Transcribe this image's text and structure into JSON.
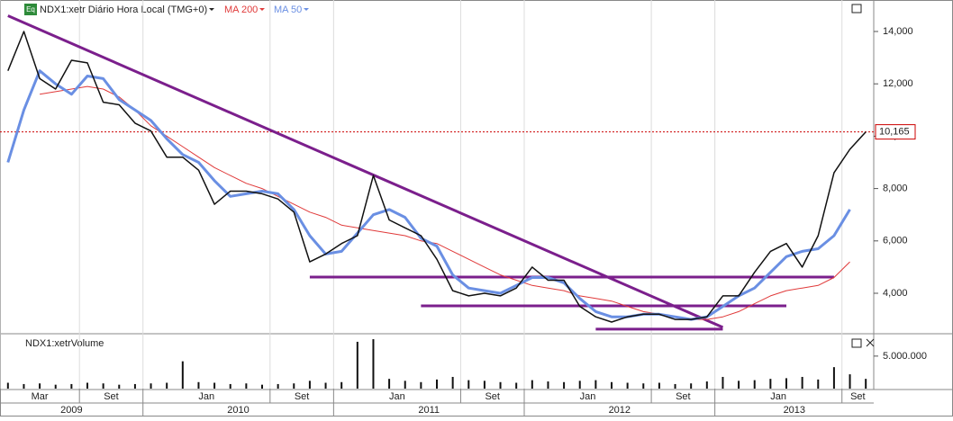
{
  "chart_data": {
    "type": "line",
    "legend": {
      "title": "NDX1:xetr Diário Hora Local (TMG+0)",
      "icon": "Eq"
    },
    "volume_title": "NDX1:xetrVolume",
    "x": [
      "2009-04",
      "2009-05",
      "2009-06",
      "2009-07",
      "2009-08",
      "2009-09",
      "2009-10",
      "2009-11",
      "2009-12",
      "2010-01",
      "2010-02",
      "2010-03",
      "2010-04",
      "2010-05",
      "2010-06",
      "2010-07",
      "2010-08",
      "2010-09",
      "2010-10",
      "2010-11",
      "2010-12",
      "2011-01",
      "2011-02",
      "2011-03",
      "2011-04",
      "2011-05",
      "2011-06",
      "2011-07",
      "2011-08",
      "2011-09",
      "2011-10",
      "2011-11",
      "2011-12",
      "2012-01",
      "2012-02",
      "2012-03",
      "2012-04",
      "2012-05",
      "2012-06",
      "2012-07",
      "2012-08",
      "2012-09",
      "2012-10",
      "2012-11",
      "2012-12",
      "2013-01",
      "2013-02",
      "2013-03",
      "2013-04",
      "2013-05",
      "2013-06",
      "2013-07",
      "2013-08",
      "2013-09",
      "2013-10"
    ],
    "xlim": [
      "2009-04",
      "2013-10"
    ],
    "xticks": [
      {
        "value": "2009-03",
        "label": "Mar"
      },
      {
        "value": "2009-09",
        "label": "Set"
      },
      {
        "value": "2010-01",
        "label": "Jan"
      },
      {
        "value": "2010-09",
        "label": "Set"
      },
      {
        "value": "2011-01",
        "label": "Jan"
      },
      {
        "value": "2011-09",
        "label": "Set"
      },
      {
        "value": "2012-01",
        "label": "Jan"
      },
      {
        "value": "2012-09",
        "label": "Set"
      },
      {
        "value": "2013-01",
        "label": "Jan"
      },
      {
        "value": "2013-09",
        "label": "Set"
      }
    ],
    "years": [
      "2009",
      "2010",
      "2011",
      "2012",
      "2013"
    ],
    "ylim": [
      2488,
      15203
    ],
    "yticks": [
      {
        "value": 4000,
        "label": "4,000"
      },
      {
        "value": 6000,
        "label": "6,000"
      },
      {
        "value": 8000,
        "label": "8,000"
      },
      {
        "value": 10000,
        "label": "10,000"
      },
      {
        "value": 12000,
        "label": "12,000"
      },
      {
        "value": 14000,
        "label": "14,000"
      }
    ],
    "grid": true,
    "last_price": {
      "value": 10165,
      "label": "10,165",
      "color": "#cc0000"
    },
    "series": [
      {
        "name": "NDX1:xetr",
        "color": "#111111",
        "width": 1.5,
        "values": [
          12500,
          14000,
          12200,
          11800,
          12900,
          12800,
          11300,
          11200,
          10500,
          10200,
          9200,
          9200,
          8700,
          7400,
          7900,
          7900,
          7800,
          7600,
          7100,
          5200,
          5500,
          5900,
          6200,
          8500,
          6800,
          6500,
          6200,
          5300,
          4100,
          3900,
          4000,
          3900,
          4200,
          5000,
          4500,
          4500,
          3500,
          3100,
          2900,
          3100,
          3200,
          3200,
          3000,
          3000,
          3100,
          3900,
          3900,
          4800,
          5600,
          5900,
          5000,
          6200,
          8600,
          9500,
          10165
        ]
      },
      {
        "name": "MA 200",
        "color": "#e03a3a",
        "width": 1,
        "values": [
          null,
          null,
          11600,
          11700,
          11800,
          11900,
          11800,
          11500,
          11000,
          10400,
          10000,
          9600,
          9200,
          8800,
          8500,
          8200,
          8000,
          7700,
          7400,
          7100,
          6900,
          6600,
          6500,
          6400,
          6300,
          6200,
          6000,
          5900,
          5600,
          5300,
          5000,
          4700,
          4500,
          4300,
          4200,
          4100,
          3900,
          3800,
          3700,
          3500,
          3300,
          3200,
          3100,
          3000,
          3000,
          3100,
          3300,
          3600,
          3900,
          4100,
          4200,
          4300,
          4600,
          5200,
          null
        ]
      },
      {
        "name": "MA 50",
        "color": "#6a8fe3",
        "width": 3,
        "values": [
          9000,
          11000,
          12500,
          12000,
          11600,
          12300,
          12200,
          11400,
          11000,
          10600,
          9900,
          9300,
          9000,
          8300,
          7700,
          7800,
          7900,
          7800,
          7200,
          6200,
          5500,
          5600,
          6300,
          7000,
          7200,
          6900,
          6100,
          5800,
          4700,
          4200,
          4100,
          4000,
          4300,
          4600,
          4600,
          4400,
          3800,
          3300,
          3100,
          3100,
          3200,
          3200,
          3100,
          3000,
          3100,
          3500,
          3900,
          4200,
          4800,
          5400,
          5600,
          5700,
          6200,
          7200,
          null
        ]
      }
    ],
    "trendlines": [
      {
        "color": "#7b1f8c",
        "x": [
          "2009-04",
          "2013-01"
        ],
        "y": [
          14600,
          2700
        ]
      },
      {
        "color": "#7b1f8c",
        "x": [
          "2010-11",
          "2013-08"
        ],
        "y": [
          4620,
          4620
        ]
      },
      {
        "color": "#7b1f8c",
        "x": [
          "2011-06",
          "2013-05"
        ],
        "y": [
          3520,
          3520
        ]
      },
      {
        "color": "#7b1f8c",
        "x": [
          "2012-05",
          "2013-01"
        ],
        "y": [
          2630,
          2630
        ]
      }
    ],
    "volume": {
      "color": "#111111",
      "ylim": [
        0,
        8300000
      ],
      "yticks": [
        {
          "value": 5000000,
          "label": "5.000.000"
        }
      ],
      "values": [
        900000,
        700000,
        800000,
        600000,
        700000,
        900000,
        800000,
        600000,
        700000,
        800000,
        900000,
        4200000,
        1000000,
        900000,
        700000,
        800000,
        600000,
        700000,
        800000,
        1200000,
        900000,
        1000000,
        7200000,
        7600000,
        1500000,
        1200000,
        1000000,
        1400000,
        1800000,
        1300000,
        1200000,
        1000000,
        900000,
        1300000,
        1100000,
        1000000,
        1200000,
        1300000,
        1000000,
        900000,
        800000,
        900000,
        700000,
        800000,
        1100000,
        1800000,
        1200000,
        1300000,
        1500000,
        1600000,
        1800000,
        1400000,
        3300000,
        2200000,
        1500000
      ]
    }
  }
}
